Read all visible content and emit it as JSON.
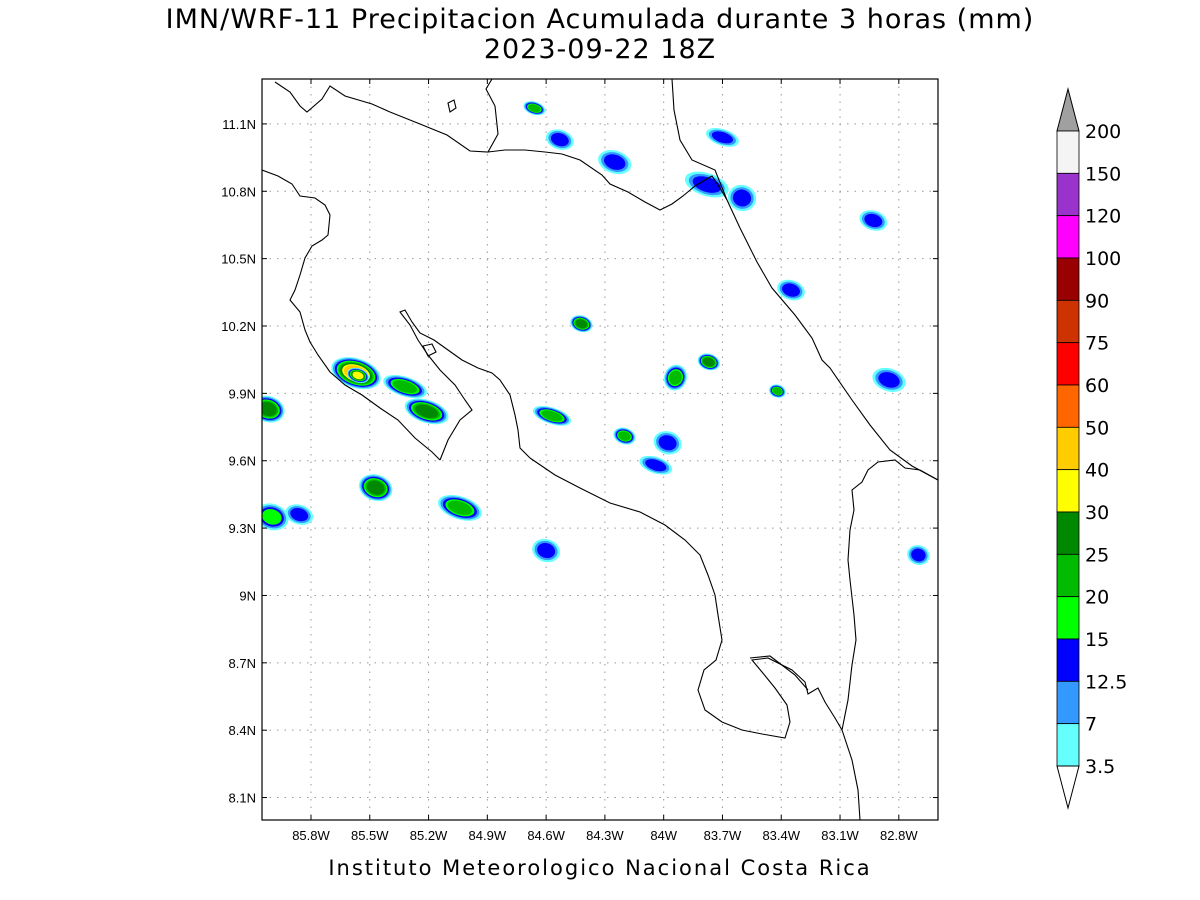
{
  "title": {
    "line1": "IMN/WRF-11 Precipitacion Acumulada durante 3 horas (mm)",
    "line2": "2023-09-22 18Z"
  },
  "footer": "Instituto Meteorologico Nacional Costa Rica",
  "map": {
    "lon_range": [
      -86.05,
      -82.6
    ],
    "lat_range": [
      8.0,
      11.3
    ],
    "x_ticks": [
      {
        "lon": -85.8,
        "label": "85.8W"
      },
      {
        "lon": -85.5,
        "label": "85.5W"
      },
      {
        "lon": -85.2,
        "label": "85.2W"
      },
      {
        "lon": -84.9,
        "label": "84.9W"
      },
      {
        "lon": -84.6,
        "label": "84.6W"
      },
      {
        "lon": -84.3,
        "label": "84.3W"
      },
      {
        "lon": -84.0,
        "label": "84W"
      },
      {
        "lon": -83.7,
        "label": "83.7W"
      },
      {
        "lon": -83.4,
        "label": "83.4W"
      },
      {
        "lon": -83.1,
        "label": "83.1W"
      },
      {
        "lon": -82.8,
        "label": "82.8W"
      }
    ],
    "y_ticks": [
      {
        "lat": 11.1,
        "label": "11.1N"
      },
      {
        "lat": 10.8,
        "label": "10.8N"
      },
      {
        "lat": 10.5,
        "label": "10.5N"
      },
      {
        "lat": 10.2,
        "label": "10.2N"
      },
      {
        "lat": 9.9,
        "label": "9.9N"
      },
      {
        "lat": 9.6,
        "label": "9.6N"
      },
      {
        "lat": 9.3,
        "label": "9.3N"
      },
      {
        "lat": 9.0,
        "label": "9N"
      },
      {
        "lat": 8.7,
        "label": "8.7N"
      },
      {
        "lat": 8.4,
        "label": "8.4N"
      },
      {
        "lat": 8.1,
        "label": "8.1N"
      }
    ],
    "gridlines": true,
    "precip_cells": [
      {
        "lon": -85.57,
        "lat": 9.99,
        "level": 40,
        "rx": 0.09,
        "ry": 0.045
      },
      {
        "lon": -85.56,
        "lat": 9.98,
        "level": 30,
        "rx": 0.04,
        "ry": 0.022
      },
      {
        "lon": -85.32,
        "lat": 9.93,
        "level": 20,
        "rx": 0.08,
        "ry": 0.03
      },
      {
        "lon": -85.21,
        "lat": 9.82,
        "level": 25,
        "rx": 0.08,
        "ry": 0.035
      },
      {
        "lon": -86.02,
        "lat": 9.83,
        "level": 25,
        "rx": 0.06,
        "ry": 0.04
      },
      {
        "lon": -85.47,
        "lat": 9.48,
        "level": 25,
        "rx": 0.06,
        "ry": 0.04
      },
      {
        "lon": -85.04,
        "lat": 9.39,
        "level": 20,
        "rx": 0.08,
        "ry": 0.035
      },
      {
        "lon": -86.0,
        "lat": 9.35,
        "level": 15,
        "rx": 0.06,
        "ry": 0.04
      },
      {
        "lon": -85.86,
        "lat": 9.36,
        "level": 12.5,
        "rx": 0.05,
        "ry": 0.03
      },
      {
        "lon": -84.57,
        "lat": 9.8,
        "level": 20,
        "rx": 0.07,
        "ry": 0.025
      },
      {
        "lon": -84.42,
        "lat": 10.21,
        "level": 25,
        "rx": 0.04,
        "ry": 0.025
      },
      {
        "lon": -84.2,
        "lat": 9.71,
        "level": 20,
        "rx": 0.04,
        "ry": 0.025
      },
      {
        "lon": -84.04,
        "lat": 9.58,
        "level": 12.5,
        "rx": 0.06,
        "ry": 0.025
      },
      {
        "lon": -83.98,
        "lat": 9.68,
        "level": 12.5,
        "rx": 0.05,
        "ry": 0.035
      },
      {
        "lon": -83.94,
        "lat": 9.97,
        "level": 20,
        "rx": 0.04,
        "ry": 0.04
      },
      {
        "lon": -83.77,
        "lat": 10.04,
        "level": 25,
        "rx": 0.04,
        "ry": 0.025
      },
      {
        "lon": -83.42,
        "lat": 9.91,
        "level": 20,
        "rx": 0.03,
        "ry": 0.02
      },
      {
        "lon": -84.66,
        "lat": 11.17,
        "level": 20,
        "rx": 0.04,
        "ry": 0.02
      },
      {
        "lon": -84.53,
        "lat": 11.03,
        "level": 12.5,
        "rx": 0.05,
        "ry": 0.03
      },
      {
        "lon": -84.25,
        "lat": 10.93,
        "level": 12.5,
        "rx": 0.06,
        "ry": 0.035
      },
      {
        "lon": -83.7,
        "lat": 11.04,
        "level": 12.5,
        "rx": 0.06,
        "ry": 0.025
      },
      {
        "lon": -83.78,
        "lat": 10.83,
        "level": 12.5,
        "rx": 0.08,
        "ry": 0.035
      },
      {
        "lon": -83.6,
        "lat": 10.77,
        "level": 12.5,
        "rx": 0.05,
        "ry": 0.04
      },
      {
        "lon": -82.93,
        "lat": 10.67,
        "level": 12.5,
        "rx": 0.05,
        "ry": 0.03
      },
      {
        "lon": -84.6,
        "lat": 9.2,
        "level": 12.5,
        "rx": 0.05,
        "ry": 0.035
      },
      {
        "lon": -82.85,
        "lat": 9.96,
        "level": 12.5,
        "rx": 0.06,
        "ry": 0.035
      },
      {
        "lon": -83.35,
        "lat": 10.36,
        "level": 12.5,
        "rx": 0.05,
        "ry": 0.03
      },
      {
        "lon": -82.7,
        "lat": 9.18,
        "level": 12.5,
        "rx": 0.04,
        "ry": 0.03
      }
    ]
  },
  "colorbar": {
    "labels": [
      "200",
      "150",
      "120",
      "100",
      "90",
      "75",
      "60",
      "50",
      "40",
      "30",
      "25",
      "20",
      "15",
      "12.5",
      "7",
      "3.5"
    ],
    "colors": [
      "#f4f4f4",
      "#9933cc",
      "#ff00ff",
      "#990000",
      "#cc3300",
      "#ff0000",
      "#ff6600",
      "#ffcc00",
      "#ffff00",
      "#008800",
      "#00bb00",
      "#00ff00",
      "#0000ff",
      "#3399ff",
      "#66ffff"
    ],
    "over_color": "#a0a0a0",
    "under_color": "#ffffff"
  }
}
